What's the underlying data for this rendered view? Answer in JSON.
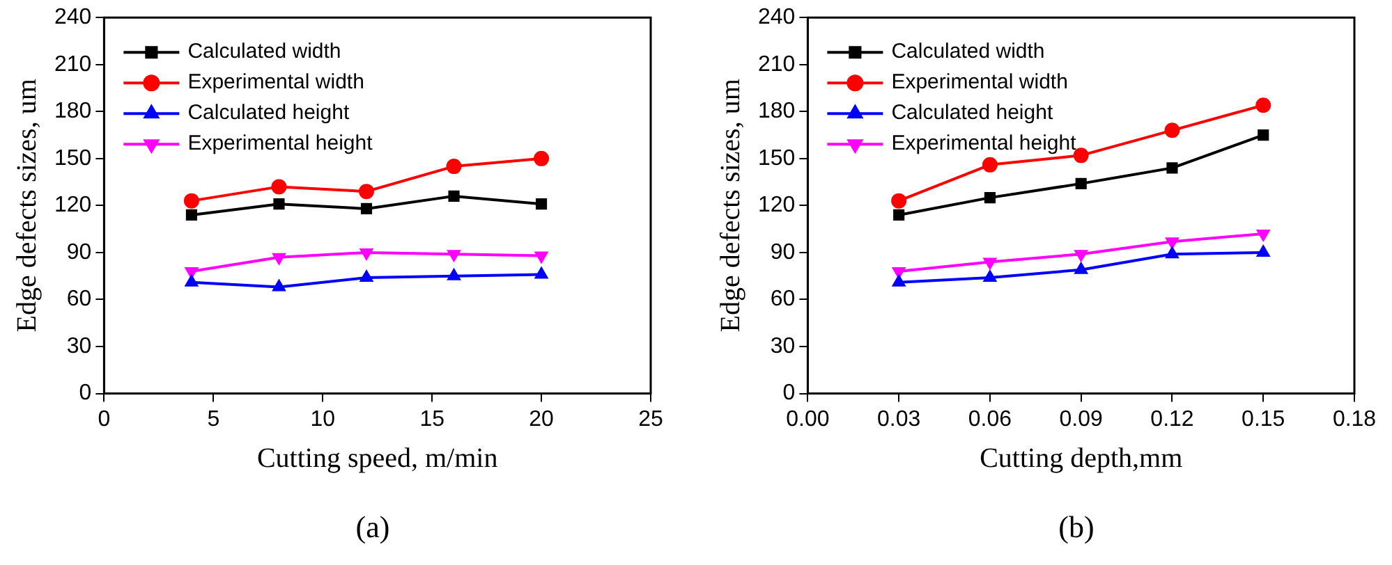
{
  "chart_data": [
    {
      "type": "line",
      "xlabel": "Cutting speed, m/min",
      "ylabel": "Edge defects sizes, um",
      "x": [
        4,
        8,
        12,
        16,
        20
      ],
      "xlim": [
        0,
        25
      ],
      "xticks": [
        0,
        5,
        10,
        15,
        20,
        25
      ],
      "ylim": [
        0,
        240
      ],
      "yticks": [
        0,
        30,
        60,
        90,
        120,
        150,
        180,
        210,
        240
      ],
      "grid": false,
      "legend": "top left",
      "line_style": "solid",
      "annotations": [
        "(a)"
      ],
      "series": [
        {
          "name": "Calculated width",
          "color": "#000000",
          "marker": "square",
          "values": [
            114,
            121,
            118,
            126,
            121
          ]
        },
        {
          "name": "Experimental width",
          "color": "#ff0000",
          "marker": "circle",
          "values": [
            123,
            132,
            129,
            145,
            150
          ]
        },
        {
          "name": "Calculated height",
          "color": "#0000ff",
          "marker": "triangle",
          "values": [
            71,
            68,
            74,
            75,
            76
          ]
        },
        {
          "name": "Experimental height",
          "color": "#ff00ff",
          "marker": "triangle_down",
          "values": [
            78,
            87,
            90,
            89,
            88
          ]
        }
      ]
    },
    {
      "type": "line",
      "xlabel": "Cutting depth,mm",
      "ylabel": "Edge defects sizes, um",
      "x": [
        0.03,
        0.06,
        0.09,
        0.12,
        0.15
      ],
      "xlim": [
        0,
        0.18
      ],
      "xticks": [
        {
          "value": 0,
          "label": "0.00"
        },
        {
          "value": 0.03,
          "label": "0.03"
        },
        {
          "value": 0.06,
          "label": "0.06"
        },
        {
          "value": 0.09,
          "label": "0.09"
        },
        {
          "value": 0.12,
          "label": "0.12"
        },
        {
          "value": 0.15,
          "label": "0.15"
        },
        {
          "value": 0.18,
          "label": "0.18"
        }
      ],
      "ylim": [
        0,
        240
      ],
      "yticks": [
        0,
        30,
        60,
        90,
        120,
        150,
        180,
        210,
        240
      ],
      "grid": false,
      "legend": "top left",
      "line_style": "solid",
      "annotations": [
        "(b)"
      ],
      "series": [
        {
          "name": "Calculated width",
          "color": "#000000",
          "marker": "square",
          "values": [
            114,
            125,
            134,
            144,
            165
          ]
        },
        {
          "name": "Experimental width",
          "color": "#ff0000",
          "marker": "circle",
          "values": [
            123,
            146,
            152,
            168,
            184
          ]
        },
        {
          "name": "Calculated height",
          "color": "#0000ff",
          "marker": "triangle",
          "values": [
            71,
            74,
            79,
            89,
            90
          ]
        },
        {
          "name": "Experimental height",
          "color": "#ff00ff",
          "marker": "triangle_down",
          "values": [
            78,
            84,
            89,
            97,
            102
          ]
        }
      ]
    }
  ]
}
